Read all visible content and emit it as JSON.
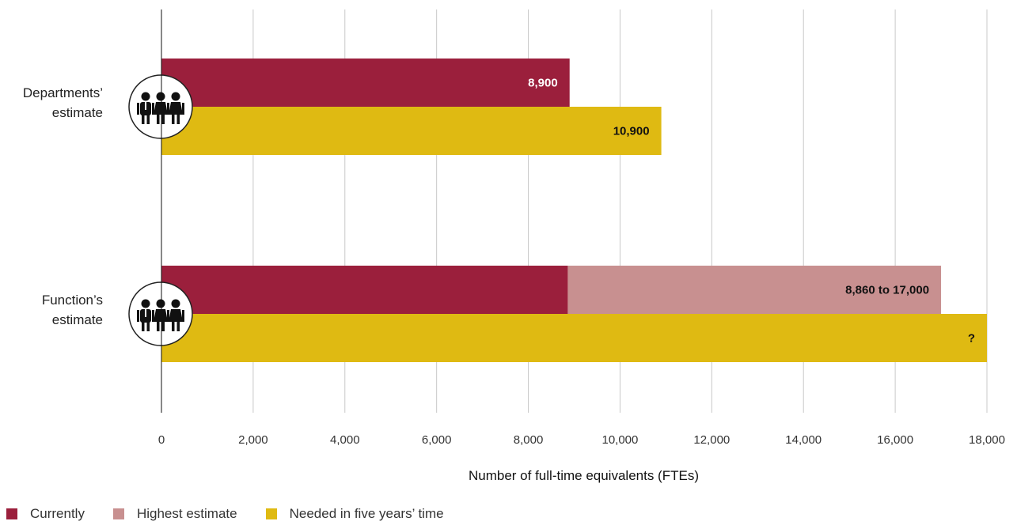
{
  "chart_data": {
    "type": "bar",
    "orientation": "horizontal",
    "xlabel": "Number of full-time equivalents (FTEs)",
    "xlim": [
      0,
      18000
    ],
    "x_ticks": [
      0,
      2000,
      4000,
      6000,
      8000,
      10000,
      12000,
      14000,
      16000,
      18000
    ],
    "x_tick_labels": [
      "0",
      "2,000",
      "4,000",
      "6,000",
      "8,000",
      "10,000",
      "12,000",
      "14,000",
      "16,000",
      "18,000"
    ],
    "grid": "vertical",
    "categories": [
      {
        "label_lines": [
          "Departments’",
          "estimate"
        ],
        "icon": "people-group-icon"
      },
      {
        "label_lines": [
          "Function’s",
          "estimate"
        ],
        "icon": "people-group-icon"
      }
    ],
    "series": [
      {
        "name": "Currently",
        "color": "#9b1f3c",
        "values": [
          8900,
          8860
        ],
        "labels": [
          "8,900",
          ""
        ],
        "label_color": "#ffffff"
      },
      {
        "name": "Highest estimate",
        "color": "#c89090",
        "stacked_on": "Currently",
        "end_values": [
          null,
          17000
        ],
        "labels": [
          "",
          "8,860 to 17,000"
        ],
        "label_color": "#111111"
      },
      {
        "name": "Needed in five years’ time",
        "color": "#dfba12",
        "values": [
          10900,
          18000
        ],
        "labels": [
          "10,900",
          "?"
        ],
        "label_color": "#111111"
      }
    ],
    "legend": {
      "placement": "bottom-left",
      "items": [
        "Currently",
        "Highest estimate",
        "Needed in five years’ time"
      ]
    }
  },
  "legend_items": [
    {
      "label": "Currently",
      "color": "#9b1f3c"
    },
    {
      "label": "Highest estimate",
      "color": "#c89090"
    },
    {
      "label": "Needed in five years’ time",
      "color": "#dfba12"
    }
  ]
}
